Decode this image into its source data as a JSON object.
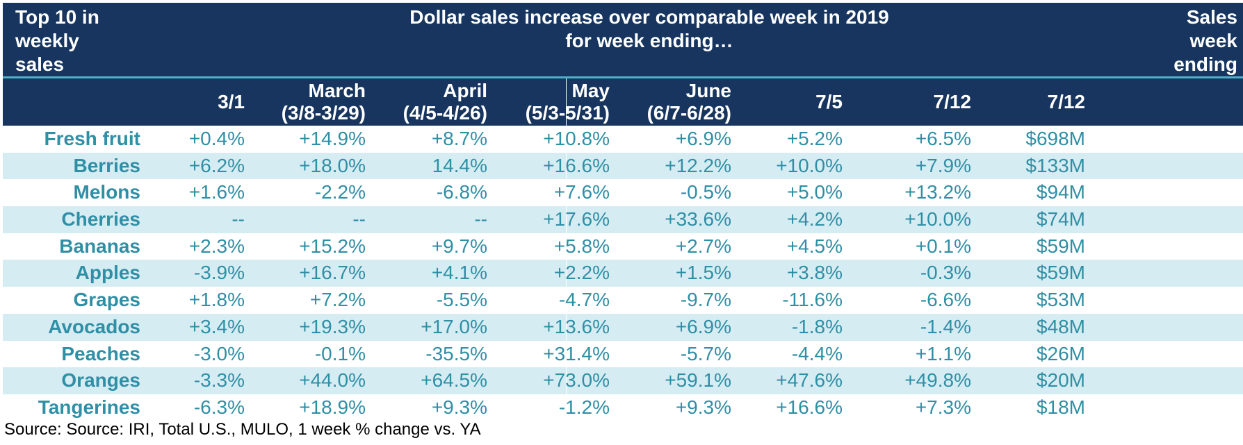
{
  "header": {
    "top_left": [
      "Top 10 in",
      "weekly",
      "sales"
    ],
    "center": [
      "Dollar sales increase over comparable week in 2019",
      "for week ending…"
    ],
    "top_right": [
      "Sales",
      "week",
      "ending"
    ]
  },
  "columns": [
    [
      "3/1"
    ],
    [
      "March",
      "(3/8-3/29)"
    ],
    [
      "April",
      "(4/5-4/26)"
    ],
    [
      "May",
      "(5/3-5/31)"
    ],
    [
      "June",
      "(6/7-6/28)"
    ],
    [
      "7/5"
    ],
    [
      "7/12"
    ],
    [
      "7/12"
    ]
  ],
  "rows": [
    {
      "label": "Fresh fruit",
      "values": [
        "+0.4%",
        "+14.9%",
        "+8.7%",
        "+10.8%",
        "+6.9%",
        "+5.2%",
        "+6.5%",
        "$698M"
      ]
    },
    {
      "label": "Berries",
      "values": [
        "+6.2%",
        "+18.0%",
        "14.4%",
        "+16.6%",
        "+12.2%",
        "+10.0%",
        "+7.9%",
        "$133M"
      ]
    },
    {
      "label": "Melons",
      "values": [
        "+1.6%",
        "-2.2%",
        "-6.8%",
        "+7.6%",
        "-0.5%",
        "+5.0%",
        "+13.2%",
        "$94M"
      ]
    },
    {
      "label": "Cherries",
      "values": [
        "--",
        "--",
        "--",
        "+17.6%",
        "+33.6%",
        "+4.2%",
        "+10.0%",
        "$74M"
      ]
    },
    {
      "label": "Bananas",
      "values": [
        "+2.3%",
        "+15.2%",
        "+9.7%",
        "+5.8%",
        "+2.7%",
        "+4.5%",
        "+0.1%",
        "$59M"
      ]
    },
    {
      "label": "Apples",
      "values": [
        "-3.9%",
        "+16.7%",
        "+4.1%",
        "+2.2%",
        "+1.5%",
        "+3.8%",
        "-0.3%",
        "$59M"
      ]
    },
    {
      "label": "Grapes",
      "values": [
        "+1.8%",
        "+7.2%",
        "-5.5%",
        "-4.7%",
        "-9.7%",
        "-11.6%",
        "-6.6%",
        "$53M"
      ]
    },
    {
      "label": "Avocados",
      "values": [
        "+3.4%",
        "+19.3%",
        "+17.0%",
        "+13.6%",
        "+6.9%",
        "-1.8%",
        "-1.4%",
        "$48M"
      ]
    },
    {
      "label": "Peaches",
      "values": [
        "-3.0%",
        "-0.1%",
        "-35.5%",
        "+31.4%",
        "-5.7%",
        "-4.4%",
        "+1.1%",
        "$26M"
      ]
    },
    {
      "label": "Oranges",
      "values": [
        "-3.3%",
        "+44.0%",
        "+64.5%",
        "+73.0%",
        "+59.1%",
        "+47.6%",
        "+49.8%",
        "$20M"
      ]
    },
    {
      "label": "Tangerines",
      "values": [
        "-6.3%",
        "+18.9%",
        "+9.3%",
        "-1.2%",
        "+9.3%",
        "+16.6%",
        "+7.3%",
        "$18M"
      ]
    }
  ],
  "source": "Source: Source: IRI, Total U.S., MULO, 1 week % change vs. YA",
  "colors": {
    "header_bg": "#17355e",
    "accent_line": "#4fb0c9",
    "row_text": "#2f8fa5",
    "alt_row_bg": "#d6ecf3"
  }
}
